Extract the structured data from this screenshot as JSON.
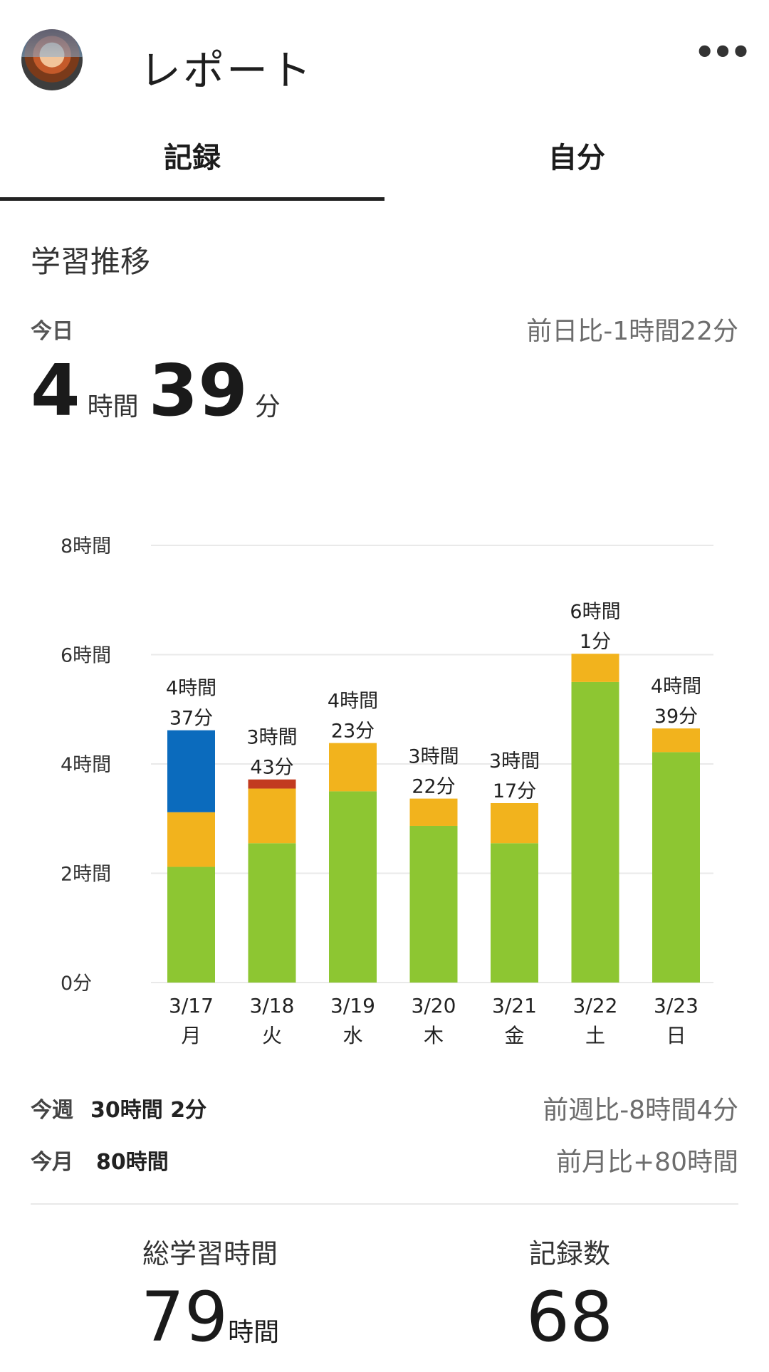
{
  "header": {
    "title": "レポート",
    "menu_label": "•••"
  },
  "tabs": [
    {
      "label": "記録",
      "active": true
    },
    {
      "label": "自分",
      "active": false
    }
  ],
  "section_title": "学習推移",
  "today": {
    "label": "今日",
    "diff": "前日比-1時間22分",
    "hours": "4",
    "hours_unit": "時間",
    "minutes": "39",
    "minutes_unit": "分"
  },
  "chart_data": {
    "type": "bar",
    "stacked": true,
    "ylim": [
      0,
      480
    ],
    "y_unit": "minutes",
    "y_ticks": [
      {
        "value": 0,
        "label": "0分"
      },
      {
        "value": 120,
        "label": "2時間"
      },
      {
        "value": 240,
        "label": "4時間"
      },
      {
        "value": 360,
        "label": "6時間"
      },
      {
        "value": 480,
        "label": "8時間"
      }
    ],
    "grid": true,
    "categories": [
      "3/17",
      "3/18",
      "3/19",
      "3/20",
      "3/21",
      "3/22",
      "3/23"
    ],
    "weekdays": [
      "月",
      "火",
      "水",
      "木",
      "金",
      "土",
      "日"
    ],
    "totals": [
      277,
      223,
      263,
      202,
      197,
      361,
      279
    ],
    "total_labels": [
      [
        "4時間",
        "37分"
      ],
      [
        "3時間",
        "43分"
      ],
      [
        "4時間",
        "23分"
      ],
      [
        "3時間",
        "22分"
      ],
      [
        "3時間",
        "17分"
      ],
      [
        "6時間",
        "1分"
      ],
      [
        "4時間",
        "39分"
      ]
    ],
    "series": [
      {
        "color": "#8dc632",
        "values": [
          127,
          153,
          210,
          172,
          153,
          330,
          253
        ]
      },
      {
        "color": "#f2b31d",
        "values": [
          60,
          60,
          53,
          30,
          44,
          31,
          26
        ]
      },
      {
        "color": "#c23b20",
        "values": [
          0,
          10,
          0,
          0,
          0,
          0,
          0
        ]
      },
      {
        "color": "#0b6bbd",
        "values": [
          90,
          0,
          0,
          0,
          0,
          0,
          0
        ]
      }
    ]
  },
  "week": {
    "label": "今週",
    "value": "30時間 2分",
    "compare": "前週比-8時間4分"
  },
  "month": {
    "label": "今月",
    "value": "80時間",
    "compare": "前月比+80時間"
  },
  "totals": {
    "study_time_label": "総学習時間",
    "study_time_value": "79",
    "study_time_unit": "時間",
    "records_label": "記録数",
    "records_value": "68"
  }
}
